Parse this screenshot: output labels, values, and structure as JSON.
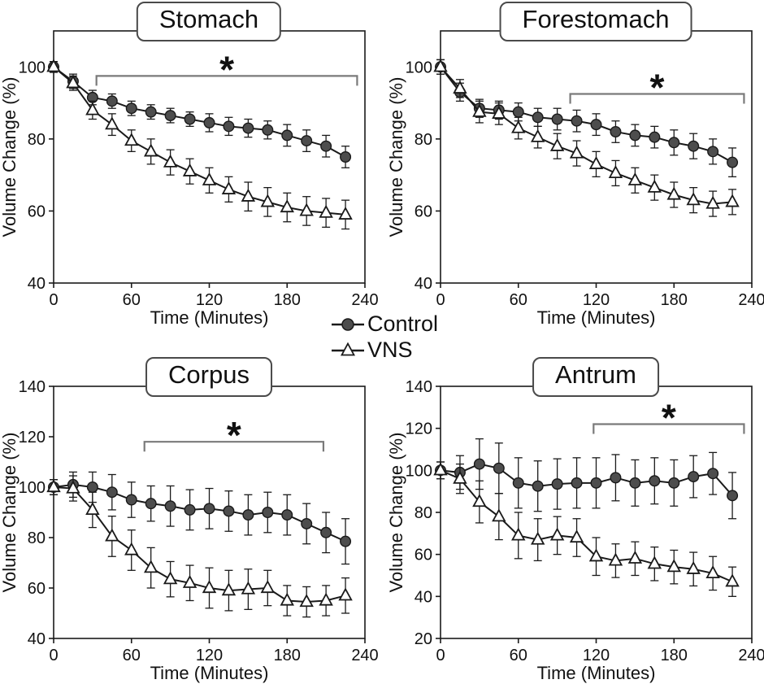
{
  "legend": {
    "items": [
      {
        "label": "Control",
        "marker": "filled-circle"
      },
      {
        "label": "VNS",
        "marker": "open-triangle"
      }
    ]
  },
  "colors": {
    "line": "#1a1a1a",
    "control_fill": "#4d4d4d",
    "vns_fill": "#ffffff",
    "bracket": "#7a7a7a",
    "text": "#111111"
  },
  "chart_data": [
    {
      "type": "line",
      "title": "Stomach",
      "xlabel": "Time (Minutes)",
      "ylabel": "Volume Change (%)",
      "xlim": [
        0,
        240
      ],
      "xticks": [
        0,
        60,
        120,
        180,
        240
      ],
      "ylim": [
        40,
        110
      ],
      "yticks": [
        40,
        60,
        80,
        100
      ],
      "x": [
        0,
        15,
        30,
        45,
        60,
        75,
        90,
        105,
        120,
        135,
        150,
        165,
        180,
        195,
        210,
        225
      ],
      "series": [
        {
          "name": "Control",
          "marker": "filled-circle",
          "values": [
            100,
            96,
            91.5,
            90.5,
            88.5,
            87.5,
            86.5,
            85.5,
            84.5,
            83.5,
            83,
            82.5,
            81,
            79.5,
            78,
            75
          ],
          "err": [
            1.5,
            2,
            2,
            2,
            2,
            2,
            2,
            2,
            2.5,
            2.5,
            2.5,
            2.5,
            3,
            3,
            3,
            3
          ]
        },
        {
          "name": "VNS",
          "marker": "open-triangle",
          "values": [
            100,
            95.5,
            88,
            84,
            79.5,
            76.5,
            73.5,
            71,
            68.5,
            66,
            64,
            62.5,
            61,
            60,
            59.5,
            59
          ],
          "err": [
            1.5,
            2,
            2.5,
            3,
            3,
            3.5,
            3.5,
            3.5,
            3.5,
            3.5,
            4,
            4,
            4,
            4,
            4,
            4
          ]
        }
      ],
      "significance": {
        "x_start": 33,
        "x_end": 234,
        "y": 97.5,
        "label": "*"
      }
    },
    {
      "type": "line",
      "title": "Forestomach",
      "xlabel": "Time (Minutes)",
      "ylabel": "Volume Change (%)",
      "xlim": [
        0,
        240
      ],
      "xticks": [
        0,
        60,
        120,
        180,
        240
      ],
      "ylim": [
        40,
        110
      ],
      "yticks": [
        40,
        60,
        80,
        100
      ],
      "x": [
        0,
        15,
        30,
        45,
        60,
        75,
        90,
        105,
        120,
        135,
        150,
        165,
        180,
        195,
        210,
        225
      ],
      "series": [
        {
          "name": "Control",
          "marker": "filled-circle",
          "values": [
            100,
            93,
            88.5,
            88,
            87.5,
            86,
            85.5,
            85,
            84,
            82,
            81,
            80.5,
            79,
            78,
            76.5,
            73.5
          ],
          "err": [
            2,
            2.5,
            2.5,
            2.5,
            2.5,
            2.5,
            3,
            3,
            3,
            3,
            3,
            3,
            3.5,
            3.5,
            3.5,
            4
          ]
        },
        {
          "name": "VNS",
          "marker": "open-triangle",
          "values": [
            100,
            94,
            87.5,
            87,
            83,
            80.5,
            78,
            76,
            73,
            70.5,
            68.5,
            66.5,
            64.5,
            63,
            62,
            62.5
          ],
          "err": [
            2,
            2.5,
            3,
            3,
            3,
            3,
            3.5,
            3.5,
            3.5,
            3.5,
            3.5,
            3.5,
            3.5,
            3.5,
            3.5,
            3.5
          ]
        }
      ],
      "significance": {
        "x_start": 100,
        "x_end": 234,
        "y": 92.5,
        "label": "*"
      }
    },
    {
      "type": "line",
      "title": "Corpus",
      "xlabel": "Time (Minutes)",
      "ylabel": "Volume Change (%)",
      "xlim": [
        0,
        240
      ],
      "xticks": [
        0,
        60,
        120,
        180,
        240
      ],
      "ylim": [
        40,
        140
      ],
      "yticks": [
        40,
        60,
        80,
        100,
        120,
        140
      ],
      "x": [
        0,
        15,
        30,
        45,
        60,
        75,
        90,
        105,
        120,
        135,
        150,
        165,
        180,
        195,
        210,
        225
      ],
      "series": [
        {
          "name": "Control",
          "marker": "filled-circle",
          "values": [
            100,
            101,
            100,
            98,
            95,
            93.5,
            92.5,
            91,
            91.5,
            90.5,
            89,
            90,
            89,
            85.5,
            82,
            78.5
          ],
          "err": [
            3,
            5,
            6,
            7,
            7,
            7,
            8,
            8,
            8,
            8,
            8,
            8,
            8,
            8,
            8,
            9
          ]
        },
        {
          "name": "VNS",
          "marker": "open-triangle",
          "values": [
            100,
            99.5,
            91,
            80.5,
            75,
            68,
            63.5,
            62,
            60,
            59,
            59.5,
            60,
            55,
            54.5,
            55,
            57
          ],
          "err": [
            3,
            5,
            7,
            8,
            8,
            8,
            7,
            7,
            8,
            8,
            8,
            7,
            6,
            6,
            6,
            7
          ]
        }
      ],
      "significance": {
        "x_start": 70,
        "x_end": 208,
        "y": 118,
        "label": "*"
      }
    },
    {
      "type": "line",
      "title": "Antrum",
      "xlabel": "Time (Minutes)",
      "ylabel": "Volume Change (%)",
      "xlim": [
        0,
        240
      ],
      "xticks": [
        0,
        60,
        120,
        180,
        240
      ],
      "ylim": [
        20,
        140
      ],
      "yticks": [
        20,
        40,
        60,
        80,
        100,
        120,
        140
      ],
      "x": [
        0,
        15,
        30,
        45,
        60,
        75,
        90,
        105,
        120,
        135,
        150,
        165,
        180,
        195,
        210,
        225
      ],
      "series": [
        {
          "name": "Control",
          "marker": "filled-circle",
          "values": [
            100,
            99,
            103,
            101,
            94,
            92.5,
            93.5,
            94,
            94,
            96.5,
            94,
            95,
            94,
            97,
            98.5,
            88
          ],
          "err": [
            4,
            8,
            12,
            12,
            12,
            12,
            12,
            12,
            12,
            11,
            11,
            11,
            11,
            10,
            10,
            11
          ]
        },
        {
          "name": "VNS",
          "marker": "open-triangle",
          "values": [
            100,
            96,
            85,
            78,
            69,
            67,
            69,
            68,
            59,
            57,
            58,
            55.5,
            54,
            53,
            51,
            47
          ],
          "err": [
            4,
            7,
            10,
            11,
            11,
            10,
            9,
            9,
            9,
            8,
            8,
            8,
            8,
            8,
            8,
            7
          ]
        }
      ],
      "significance": {
        "x_start": 118,
        "x_end": 234,
        "y": 122,
        "label": "*"
      }
    }
  ]
}
